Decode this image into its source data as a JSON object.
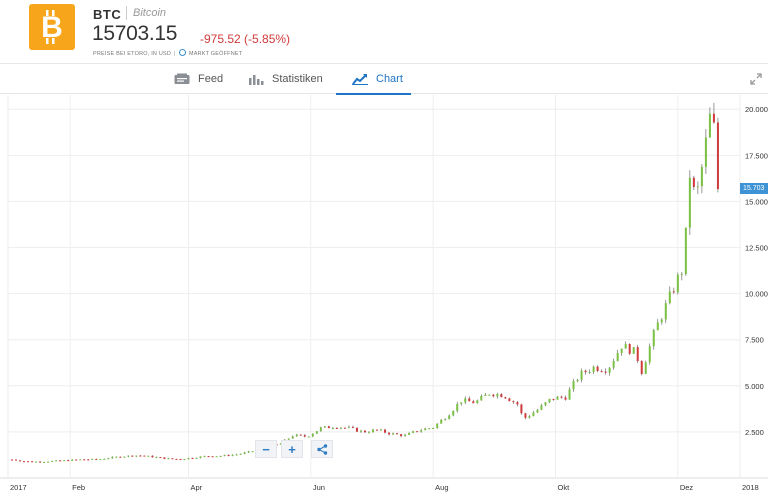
{
  "header": {
    "symbol": "BTC",
    "name": "Bitcoin",
    "price": "15703.15",
    "change": "-975.52 (-5.85%)",
    "price_note": "PREISE BEI ETORO, IN USD",
    "market_status": "MARKT GEÖFFNET",
    "logo_icon": "bitcoin-logo",
    "change_color": "#d03a3a"
  },
  "tabs": [
    {
      "label": "Feed",
      "icon": "feed-icon"
    },
    {
      "label": "Statistiken",
      "icon": "stats-icon"
    },
    {
      "label": "Chart",
      "icon": "chart-icon",
      "active": true
    }
  ],
  "controls": {
    "zoom_out": "−",
    "zoom_in": "+",
    "share_icon": "share-icon",
    "expand_icon": "expand-icon"
  },
  "chart_data": {
    "type": "candlestick",
    "title": "",
    "x_ticks": [
      "2017",
      "Feb",
      "Apr",
      "Jun",
      "Aug",
      "Okt",
      "Dez",
      "2018"
    ],
    "y_ticks": [
      "2.500",
      "5.000",
      "7.500",
      "10.000",
      "12.500",
      "15.000",
      "17.500",
      "20.000"
    ],
    "ylim": [
      0,
      20500
    ],
    "last_price_label": "15.703",
    "colors": {
      "up": "#7ac043",
      "down": "#d03a3a",
      "wick": "#555555",
      "last_price": "#3d93d6"
    },
    "x_start": "2017-01-01",
    "x_end": "2018-01-01",
    "series": [
      {
        "date": "2017-01-03",
        "close": 1000
      },
      {
        "date": "2017-01-10",
        "close": 900
      },
      {
        "date": "2017-01-17",
        "close": 880
      },
      {
        "date": "2017-01-24",
        "close": 920
      },
      {
        "date": "2017-01-31",
        "close": 960
      },
      {
        "date": "2017-02-07",
        "close": 1010
      },
      {
        "date": "2017-02-14",
        "close": 1000
      },
      {
        "date": "2017-02-21",
        "close": 1100
      },
      {
        "date": "2017-02-28",
        "close": 1180
      },
      {
        "date": "2017-03-07",
        "close": 1230
      },
      {
        "date": "2017-03-14",
        "close": 1150
      },
      {
        "date": "2017-03-21",
        "close": 1050
      },
      {
        "date": "2017-03-28",
        "close": 1020
      },
      {
        "date": "2017-04-04",
        "close": 1120
      },
      {
        "date": "2017-04-11",
        "close": 1190
      },
      {
        "date": "2017-04-18",
        "close": 1200
      },
      {
        "date": "2017-04-25",
        "close": 1280
      },
      {
        "date": "2017-05-02",
        "close": 1420
      },
      {
        "date": "2017-05-09",
        "close": 1720
      },
      {
        "date": "2017-05-16",
        "close": 1800
      },
      {
        "date": "2017-05-23",
        "close": 2300
      },
      {
        "date": "2017-05-30",
        "close": 2250
      },
      {
        "date": "2017-06-06",
        "close": 2700
      },
      {
        "date": "2017-06-13",
        "close": 2800
      },
      {
        "date": "2017-06-20",
        "close": 2700
      },
      {
        "date": "2017-06-27",
        "close": 2500
      },
      {
        "date": "2017-07-04",
        "close": 2600
      },
      {
        "date": "2017-07-11",
        "close": 2400
      },
      {
        "date": "2017-07-18",
        "close": 2300
      },
      {
        "date": "2017-07-25",
        "close": 2600
      },
      {
        "date": "2017-08-01",
        "close": 2750
      },
      {
        "date": "2017-08-08",
        "close": 3400
      },
      {
        "date": "2017-08-15",
        "close": 4200
      },
      {
        "date": "2017-08-22",
        "close": 4100
      },
      {
        "date": "2017-08-29",
        "close": 4600
      },
      {
        "date": "2017-09-05",
        "close": 4500
      },
      {
        "date": "2017-09-12",
        "close": 4000
      },
      {
        "date": "2017-09-15",
        "close": 3200
      },
      {
        "date": "2017-09-22",
        "close": 3700
      },
      {
        "date": "2017-09-29",
        "close": 4300
      },
      {
        "date": "2017-10-06",
        "close": 4400
      },
      {
        "date": "2017-10-13",
        "close": 5600
      },
      {
        "date": "2017-10-20",
        "close": 6000
      },
      {
        "date": "2017-10-27",
        "close": 5900
      },
      {
        "date": "2017-11-03",
        "close": 7200
      },
      {
        "date": "2017-11-10",
        "close": 6800
      },
      {
        "date": "2017-11-13",
        "close": 5800
      },
      {
        "date": "2017-11-20",
        "close": 8100
      },
      {
        "date": "2017-11-27",
        "close": 9800
      },
      {
        "date": "2017-12-01",
        "close": 10800
      },
      {
        "date": "2017-12-04",
        "close": 11500
      },
      {
        "date": "2017-12-07",
        "close": 16500
      },
      {
        "date": "2017-12-10",
        "close": 15000
      },
      {
        "date": "2017-12-13",
        "close": 16800
      },
      {
        "date": "2017-12-17",
        "close": 19500
      },
      {
        "date": "2017-12-19",
        "close": 18900
      },
      {
        "date": "2017-12-20",
        "close": 17500
      },
      {
        "date": "2017-12-21",
        "close": 15703
      }
    ]
  }
}
